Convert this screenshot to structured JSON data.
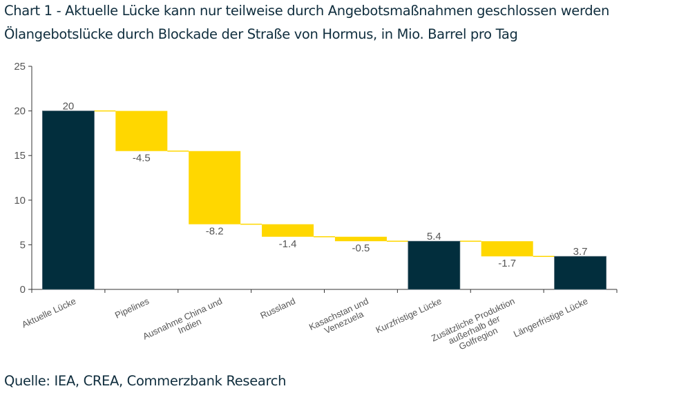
{
  "header": {
    "title": "Chart 1 - Aktuelle Lücke kann nur teilweise durch Angebotsmaßnahmen geschlossen werden",
    "subtitle": "Ölangebotslücke durch Blockade der Straße von Hormus, in Mio. Barrel pro Tag"
  },
  "footer": {
    "source": "Quelle: IEA, CREA, Commerzbank Research"
  },
  "colors": {
    "total": "#022e3d",
    "delta": "#ffd700",
    "connector": "#ffd700",
    "axis": "#333333",
    "text": "#555555"
  },
  "chart_data": {
    "type": "bar",
    "subtype": "waterfall",
    "title": "Chart 1 - Aktuelle Lücke kann nur teilweise durch Angebotsmaßnahmen geschlossen werden",
    "subtitle": "Ölangebotslücke durch Blockade der Straße von Hormus, in Mio. Barrel pro Tag",
    "xlabel": "",
    "ylabel": "",
    "ylim": [
      0,
      25
    ],
    "yticks": [
      0,
      5,
      10,
      15,
      20,
      25
    ],
    "grid": false,
    "legend": "none",
    "categories": [
      [
        "Aktuelle Lücke"
      ],
      [
        "Pipelines"
      ],
      [
        "Ausnahme China und",
        "Indien"
      ],
      [
        "Russland"
      ],
      [
        "Kasachstan und",
        "Venezuela"
      ],
      [
        "Kurzfristige Lücke"
      ],
      [
        "Zusätzliche Produktion",
        "außerhalb der",
        "Golfregion"
      ],
      [
        "Längerfristige Lücke"
      ]
    ],
    "values": [
      20,
      -4.5,
      -8.2,
      -1.4,
      -0.5,
      5.4,
      -1.7,
      3.7
    ],
    "labels": [
      "20",
      "-4.5",
      "-8.2",
      "-1.4",
      "-0.5",
      "5.4",
      "-1.7",
      "3.7"
    ],
    "kinds": [
      "total",
      "delta",
      "delta",
      "delta",
      "delta",
      "total",
      "delta",
      "total"
    ]
  }
}
